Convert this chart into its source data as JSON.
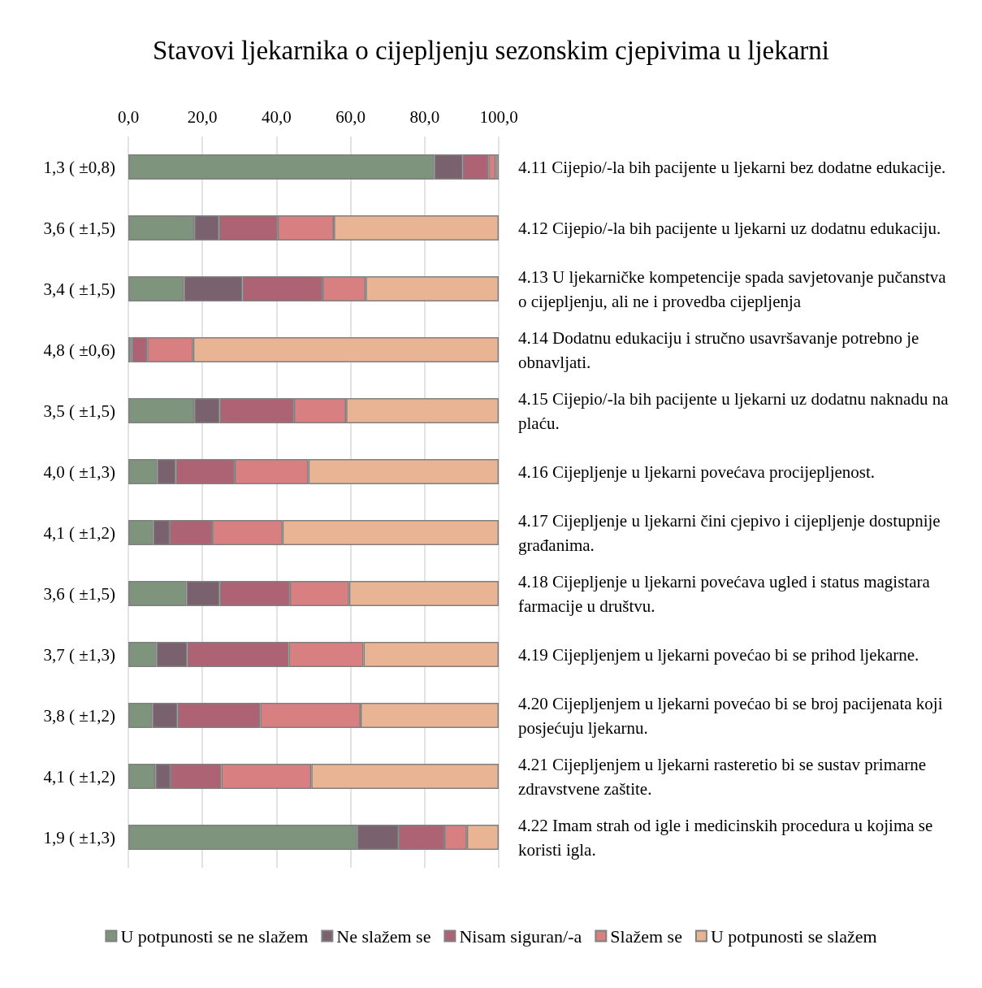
{
  "chart_data": {
    "type": "bar",
    "orientation": "horizontal",
    "stacked": true,
    "title": "Stavovi ljekarnika o cijepljenju sezonskim cjepivima u ljekarni",
    "categories": [
      "1,3 ( ±0,8)",
      "3,6 ( ±1,5)",
      "3,4 ( ±1,5)",
      "4,8 ( ±0,6)",
      "3,5 ( ±1,5)",
      "4,0 ( ±1,3)",
      "4,1 ( ±1,2)",
      "3,6 ( ±1,5)",
      "3,7 ( ±1,3)",
      "3,8 ( ±1,2)",
      "4,1 ( ±1,2)",
      "1,9 ( ±1,3)"
    ],
    "y2_categories": [
      "4.11 Cijepio/-la bih pacijente u ljekarni bez dodatne edukacije.",
      "4.12 Cijepio/-la bih pacijente u ljekarni uz dodatnu edukaciju.",
      "4.13 U ljekarničke kompetencije spada savjetovanje pučanstva o cijepljenju, ali ne i provedba cijepljenja",
      "4.14 Dodatnu edukaciju i stručno usavršavanje potrebno je obnavljati.",
      "4.15 Cijepio/-la bih pacijente u ljekarni uz dodatnu naknadu na plaću.",
      "4.16 Cijepljenje u ljekarni povećava procijepljenost.",
      "4.17 Cijepljenje u ljekarni čini cjepivo i cijepljenje dostupnije građanima.",
      "4.18 Cijepljenje u ljekarni povećava ugled i status magistara farmacije u društvu.",
      "4.19 Cijepljenjem u ljekarni povećao bi se prihod ljekarne.",
      "4.20 Cijepljenjem u ljekarni povećao bi se broj pacijenata koji posjećuju ljekarnu.",
      "4.21 Cijepljenjem u ljekarni rasteretio bi se sustav primarne zdravstvene zaštite.",
      "4.22 Imam strah od igle i medicinskih procedura u kojima se koristi igla."
    ],
    "series": [
      {
        "name": "U potpunosti se ne slažem",
        "color": "#7e947c",
        "values": [
          82.6,
          17.8,
          15.0,
          0.5,
          17.8,
          7.8,
          6.7,
          15.7,
          7.6,
          6.5,
          7.3,
          61.8
        ]
      },
      {
        "name": "Ne slažem se",
        "color": "#7a616e",
        "values": [
          7.7,
          6.7,
          15.8,
          0.5,
          6.9,
          5.0,
          4.5,
          9.0,
          8.3,
          6.8,
          4.1,
          11.2
        ]
      },
      {
        "name": "Nisam siguran/-a",
        "color": "#ad6373",
        "values": [
          6.9,
          15.8,
          21.6,
          4.1,
          20.0,
          15.9,
          11.4,
          18.9,
          27.4,
          22.3,
          13.7,
          12.3
        ]
      },
      {
        "name": "Slažem se",
        "color": "#d87f81",
        "values": [
          2.0,
          15.2,
          11.7,
          12.4,
          14.1,
          19.9,
          19.0,
          16.0,
          20.2,
          27.1,
          24.3,
          6.1
        ]
      },
      {
        "name": "U potpunosti se slažem",
        "color": "#e9b494",
        "values": [
          0.8,
          44.5,
          35.9,
          82.5,
          41.2,
          51.4,
          58.4,
          40.4,
          36.5,
          37.3,
          50.6,
          8.6
        ]
      }
    ],
    "xlim": [
      0,
      100
    ],
    "xticks": [
      {
        "value": 0,
        "label": "0,0"
      },
      {
        "value": 20,
        "label": "20,0"
      },
      {
        "value": 40,
        "label": "40,0"
      },
      {
        "value": 60,
        "label": "60,0"
      },
      {
        "value": 80,
        "label": "80,0"
      },
      {
        "value": 100,
        "label": "100,0"
      }
    ],
    "grid": "x",
    "legend": "bottom"
  }
}
